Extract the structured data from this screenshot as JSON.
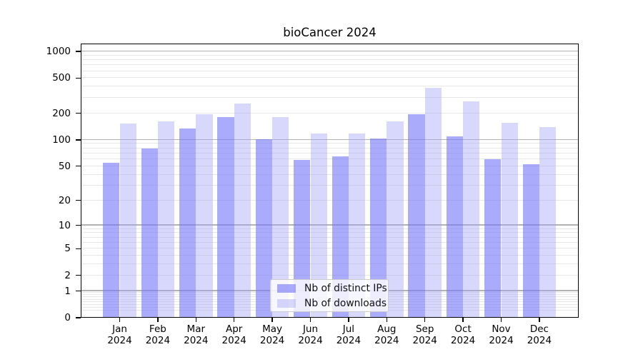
{
  "title": "bioCancer 2024",
  "colors": {
    "background": "#ffffff",
    "axis": "#000000",
    "grid_major": "#b3b3b3",
    "grid_minor": "#e7e7e7",
    "legend_border": "#cccccc",
    "bar_distinct_ips_hex": "#aaaafa",
    "bar_downloads_hex": "#d9d9fa"
  },
  "chart_data": {
    "type": "bar",
    "title": "bioCancer 2024",
    "categories": [
      "Jan",
      "Feb",
      "Mar",
      "Apr",
      "May",
      "Jun",
      "Jul",
      "Aug",
      "Sep",
      "Oct",
      "Nov",
      "Dec"
    ],
    "x_year": "2024",
    "series": [
      {
        "name": "Nb of distinct IPs",
        "color_hex": "#aaaafa",
        "fill_rgba": "rgba(119,119,248,0.62)",
        "values": [
          55,
          79,
          134,
          181,
          102,
          59,
          65,
          104,
          196,
          110,
          60,
          53
        ]
      },
      {
        "name": "Nb of downloads",
        "color_hex": "#d9d9fa",
        "fill_rgba": "rgba(162,162,248,0.42)",
        "values": [
          152,
          161,
          196,
          259,
          182,
          119,
          117,
          161,
          392,
          275,
          157,
          140
        ]
      }
    ],
    "xlabel": "",
    "ylabel": "",
    "y_ticks": [
      0,
      1,
      2,
      5,
      10,
      20,
      50,
      100,
      200,
      500,
      1000
    ],
    "scale": "log1p",
    "ylim": [
      0,
      1227
    ],
    "grid": true,
    "legend_position": "lower center inside"
  }
}
